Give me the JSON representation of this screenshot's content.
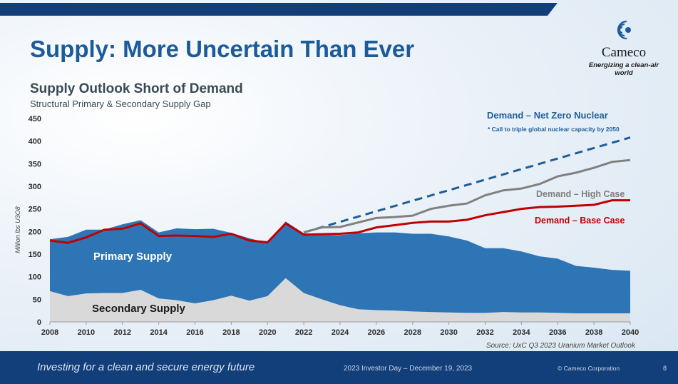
{
  "slide": {
    "title": "Supply: More Uncertain Than Ever",
    "logo_name": "Cameco",
    "logo_tagline": "Energizing a clean-air world",
    "footer_tagline": "Investing for a clean and secure energy future",
    "footer_event": "2023 Investor Day – December 19, 2023",
    "footer_copyright": "© Cameco Corporation",
    "page_number": "8"
  },
  "colors": {
    "primary_supply": "#2e75b6",
    "secondary_supply": "#d9d9d9",
    "base_case": "#c00000",
    "high_case": "#808080",
    "net_zero": "#1f5d99",
    "brand_navy": "#123e7a"
  },
  "chart_data": {
    "type": "area",
    "title": "Supply Outlook Short of Demand",
    "subtitle": "Structural Primary & Secondary Supply Gap",
    "ylabel": "Million lbs U3O8",
    "ylim": [
      0,
      450
    ],
    "xlim": [
      2008,
      2040
    ],
    "yticks": [
      0,
      50,
      100,
      150,
      200,
      250,
      300,
      350,
      400,
      450
    ],
    "xticks": [
      2008,
      2010,
      2012,
      2014,
      2016,
      2018,
      2020,
      2022,
      2024,
      2026,
      2028,
      2030,
      2032,
      2034,
      2036,
      2038,
      2040
    ],
    "grid": false,
    "x": [
      2008,
      2009,
      2010,
      2011,
      2012,
      2013,
      2014,
      2015,
      2016,
      2017,
      2018,
      2019,
      2020,
      2021,
      2022,
      2023,
      2024,
      2025,
      2026,
      2027,
      2028,
      2029,
      2030,
      2031,
      2032,
      2033,
      2034,
      2035,
      2036,
      2037,
      2038,
      2039,
      2040
    ],
    "series": [
      {
        "name": "Secondary Supply",
        "kind": "area",
        "color": "#d9d9d9",
        "values": [
          68,
          57,
          63,
          64,
          64,
          71,
          52,
          48,
          41,
          48,
          58,
          47,
          57,
          97,
          64,
          50,
          37,
          28,
          26,
          25,
          23,
          22,
          21,
          20,
          20,
          22,
          21,
          21,
          20,
          19,
          19,
          19,
          19
        ]
      },
      {
        "name": "Primary Supply",
        "kind": "area_total",
        "color": "#2e75b6",
        "values": [
          183,
          188,
          204,
          204,
          216,
          225,
          198,
          207,
          205,
          206,
          197,
          185,
          175,
          222,
          196,
          192,
          192,
          196,
          198,
          198,
          195,
          195,
          189,
          180,
          163,
          163,
          156,
          145,
          140,
          124,
          120,
          115,
          113
        ]
      },
      {
        "name": "Demand – Base Case",
        "kind": "line",
        "color": "#c00000",
        "values": [
          180,
          175,
          187,
          204,
          206,
          218,
          190,
          191,
          190,
          188,
          195,
          180,
          176,
          218,
          193,
          194,
          195,
          198,
          209,
          214,
          219,
          222,
          222,
          226,
          236,
          243,
          250,
          254,
          255,
          257,
          259,
          269,
          269
        ]
      },
      {
        "name": "Demand – High Case",
        "kind": "line",
        "color": "#808080",
        "x": [
          2022,
          2023,
          2024,
          2025,
          2026,
          2027,
          2028,
          2029,
          2030,
          2031,
          2032,
          2033,
          2034,
          2035,
          2036,
          2037,
          2038,
          2039,
          2040
        ],
        "values": [
          198,
          209,
          210,
          220,
          230,
          232,
          235,
          250,
          257,
          262,
          280,
          291,
          295,
          305,
          322,
          330,
          341,
          354,
          358
        ]
      },
      {
        "name": "Demand – Net Zero Nuclear",
        "kind": "dashed",
        "color": "#1f5d99",
        "x": [
          2022,
          2040
        ],
        "values": [
          198,
          408
        ]
      }
    ],
    "annotations": {
      "primary_label": "Primary Supply",
      "secondary_label": "Secondary Supply",
      "net_zero_label": "Demand – Net Zero Nuclear",
      "net_zero_note": "* Call to triple global nuclear capacity by 2050",
      "high_label": "Demand – High Case",
      "base_label": "Demand – Base Case",
      "source": "Source: UxC Q3 2023 Uranium Market Outlook"
    }
  }
}
